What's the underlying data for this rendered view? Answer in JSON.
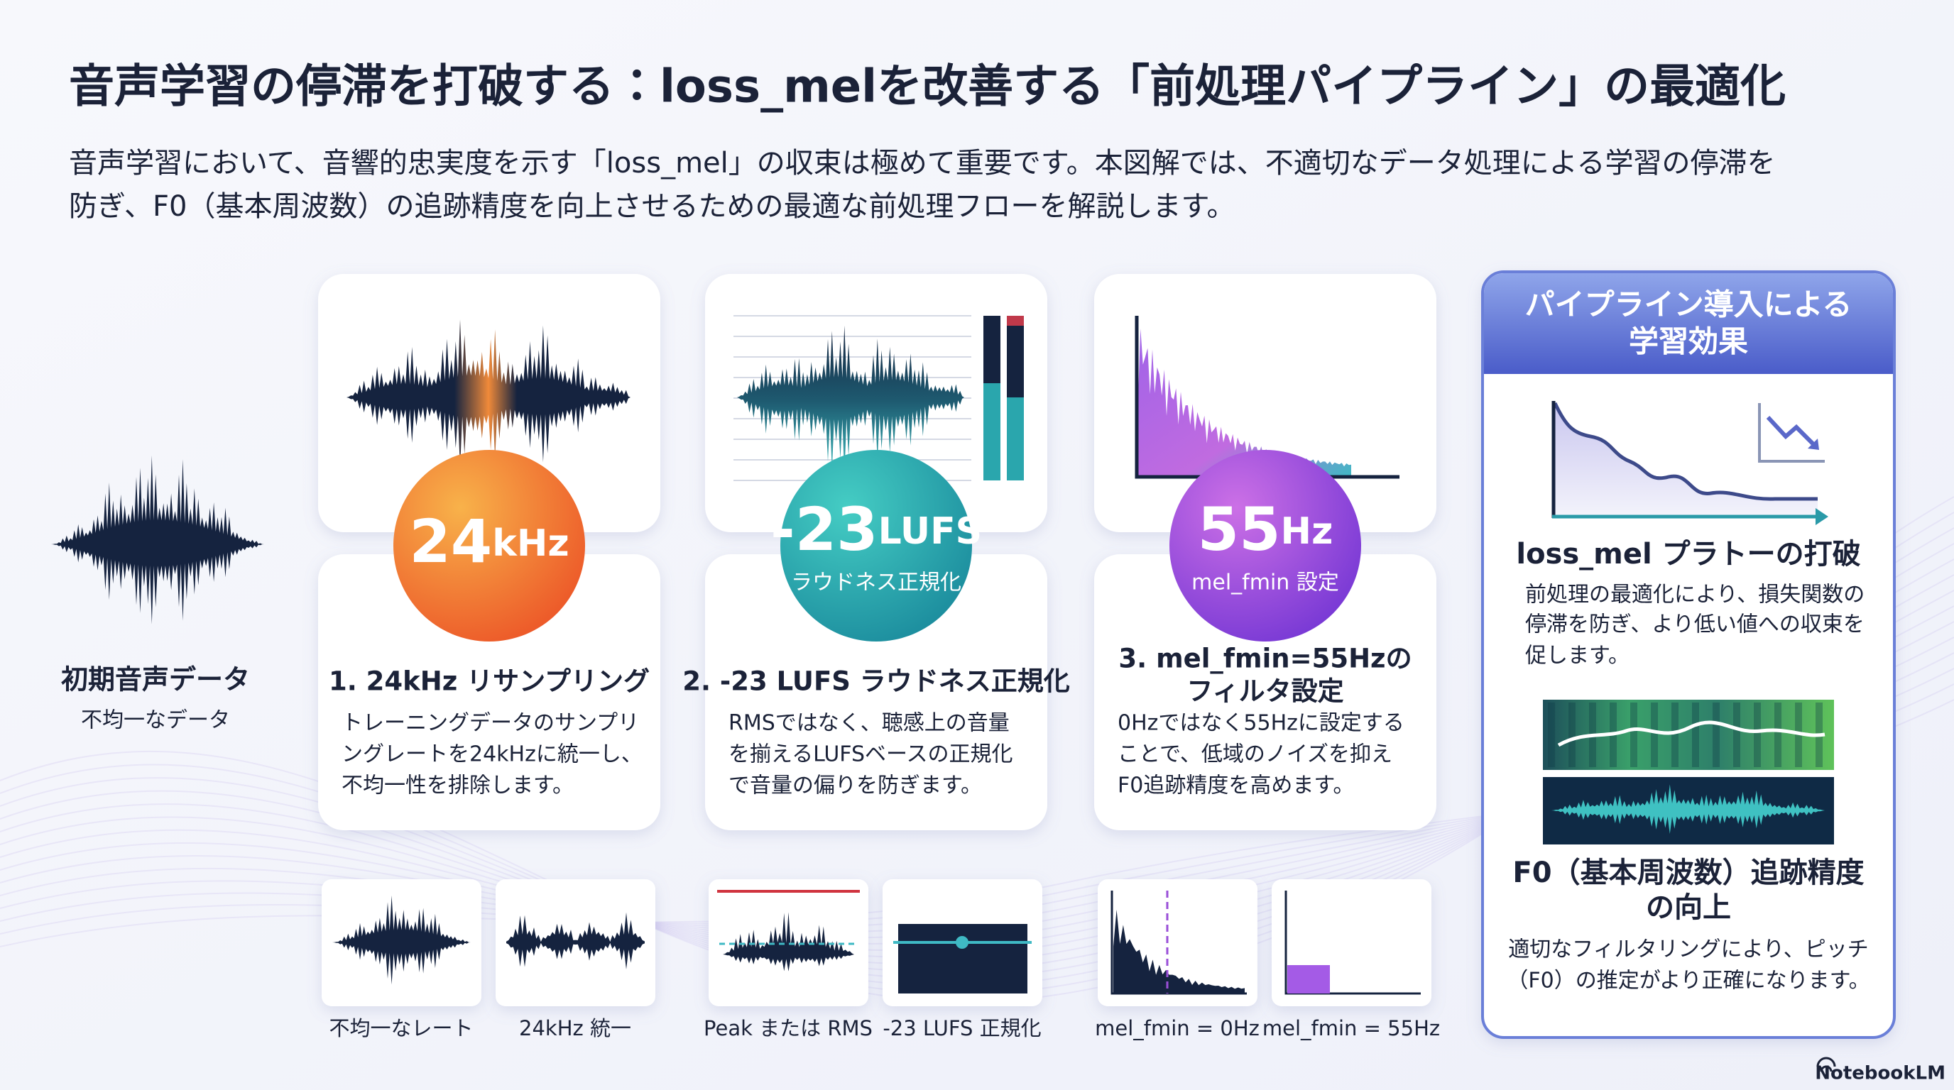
{
  "title": "音声学習の停滞を打破する：loss_melを改善する「前処理パイプライン」の最適化",
  "intro": [
    "音声学習において、音響的忠実度を示す「loss_mel」の収束は極めて重要です。本図解では、不適切なデータ処理による学習の停滞を",
    "防ぎ、F0（基本周波数）の追跡精度を向上させるための最適な前処理フローを解説します。"
  ],
  "input": {
    "label": "初期音声データ",
    "sublabel": "不均一なデータ"
  },
  "steps": [
    {
      "badge_value": "24",
      "badge_unit": "kHz",
      "heading": [
        "1. 24kHz リサンプリング"
      ],
      "body": [
        "トレーニングデータのサンプリ",
        "ングレートを24kHzに統一し、",
        "不均一性を排除します。"
      ],
      "compare": [
        "不均一なレート",
        "24kHz 統一"
      ]
    },
    {
      "badge_value": "-23",
      "badge_unit": "LUFS",
      "badge_sub": "ラウドネス正規化",
      "heading": [
        "2. -23 LUFS ラウドネス正規化"
      ],
      "body": [
        "RMSではなく、聴感上の音量",
        "を揃えるLUFSベースの正規化",
        "で音量の偏りを防ぎます。"
      ],
      "compare": [
        "Peak または RMS",
        "-23 LUFS 正規化"
      ]
    },
    {
      "badge_value": "55",
      "badge_unit": "Hz",
      "badge_sub": "mel_fmin 設定",
      "heading": [
        "3. mel_fmin=55Hzの",
        "フィルタ設定"
      ],
      "body": [
        "0Hzではなく55Hzに設定する",
        "ことで、低域のノイズを抑え",
        "F0追跡精度を高めます。"
      ],
      "compare": [
        "mel_fmin = 0Hz",
        "mel_fmin = 55Hz"
      ]
    }
  ],
  "result": {
    "title": [
      "パイプライン導入による",
      "学習効果"
    ],
    "items": [
      {
        "heading": [
          "loss_mel プラトーの打破"
        ],
        "body": [
          "前処理の最適化により、損失関数の",
          "停滞を防ぎ、より低い値への収束を",
          "促します。"
        ]
      },
      {
        "heading": [
          "F0（基本周波数）追跡精度",
          "の向上"
        ],
        "body": [
          "適切なフィルタリングにより、ピッチ",
          "（F0）の推定がより正確になります。"
        ]
      }
    ]
  },
  "footer": "NotebookLM"
}
